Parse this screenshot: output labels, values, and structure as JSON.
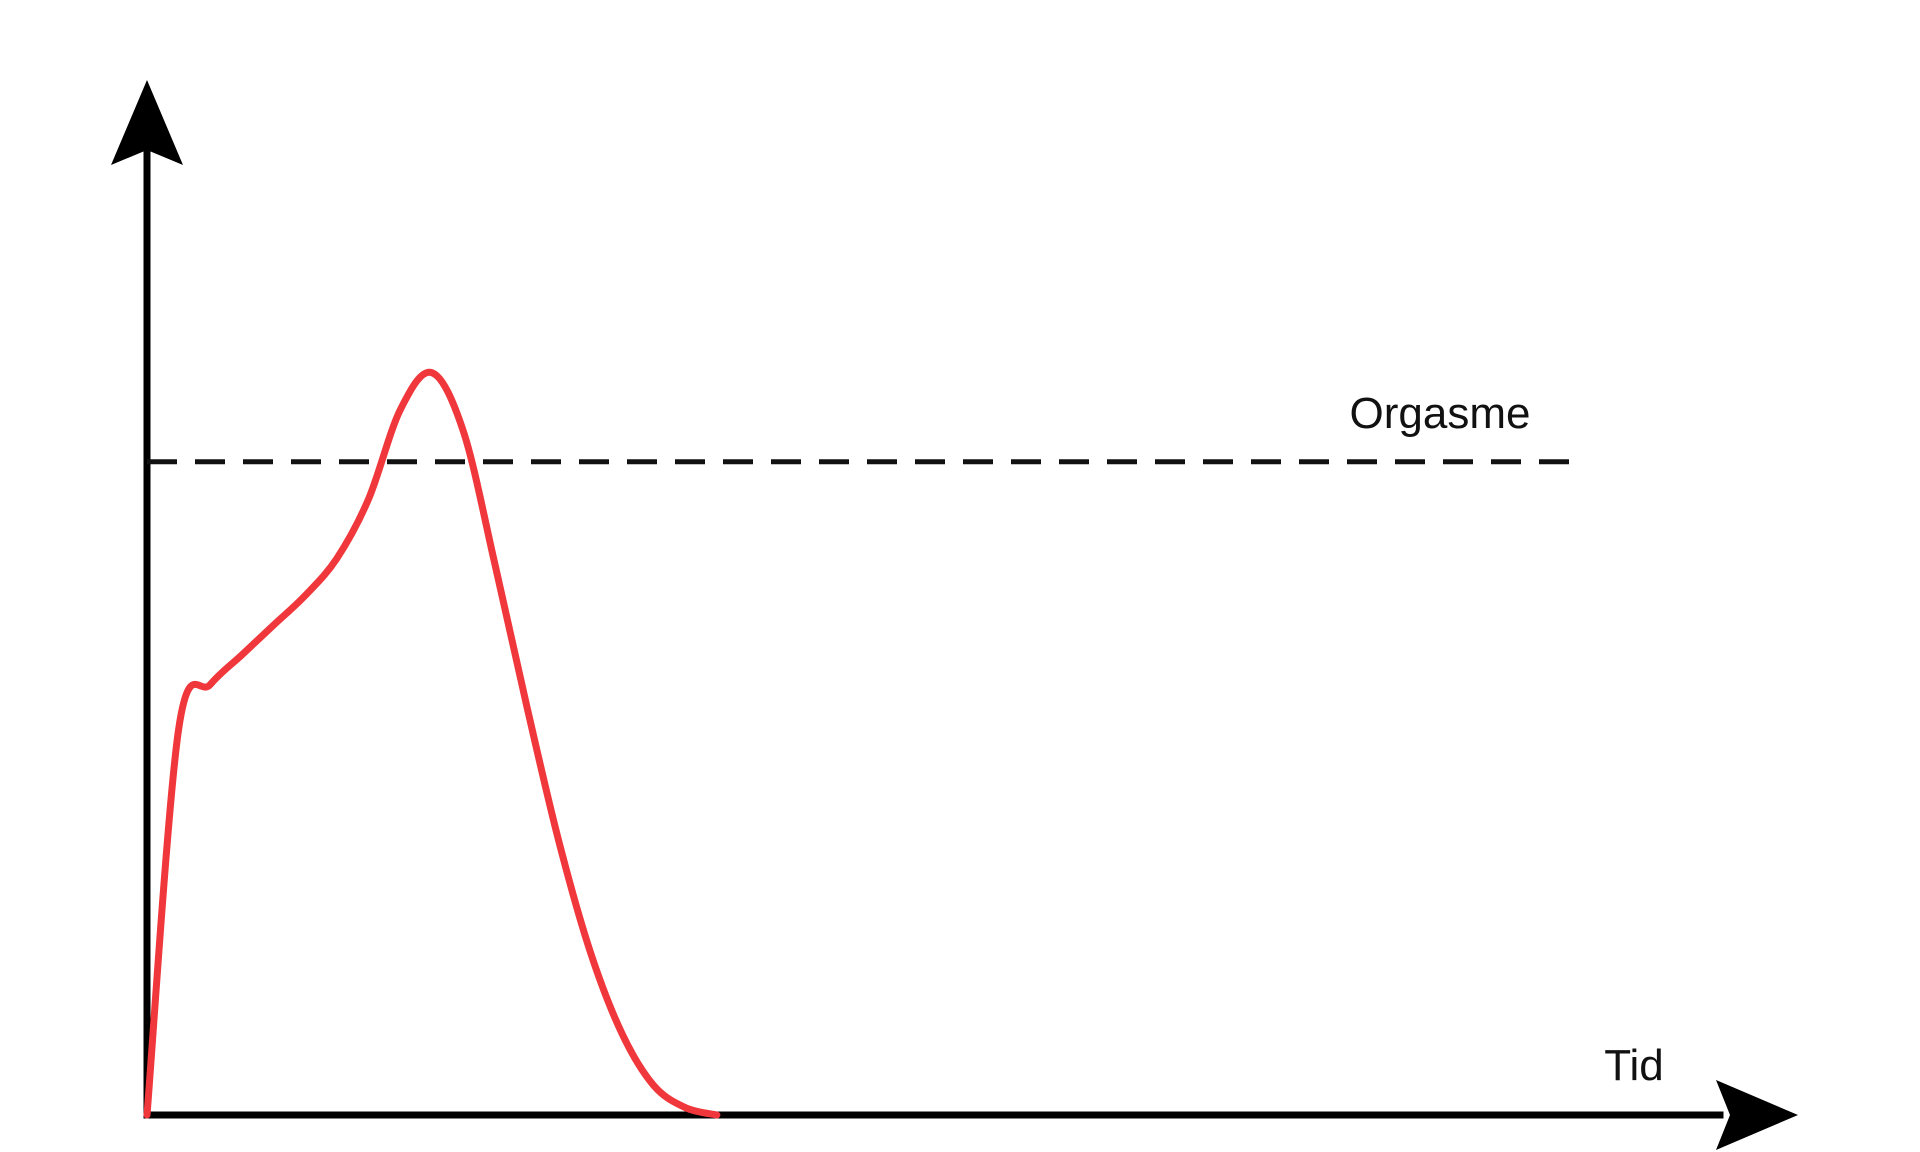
{
  "chart_data": {
    "type": "line",
    "xlabel": "Tid",
    "ylabel": "",
    "threshold": {
      "label": "Orgasme",
      "y": 0.88,
      "style": "dashed",
      "color": "#111111"
    },
    "series": [
      {
        "color": "#f0373b",
        "x": [
          0,
          0.02,
          0.04,
          0.06,
          0.08,
          0.1,
          0.12,
          0.14,
          0.16,
          0.18,
          0.2,
          0.22,
          0.24,
          0.26,
          0.28,
          0.3,
          0.32,
          0.34,
          0.36
        ],
        "y": [
          0,
          0.52,
          0.58,
          0.62,
          0.66,
          0.7,
          0.75,
          0.83,
          0.95,
          1.0,
          0.92,
          0.74,
          0.55,
          0.37,
          0.22,
          0.11,
          0.04,
          0.01,
          0
        ]
      }
    ],
    "xlim": [
      0,
      1
    ],
    "ylim": [
      0,
      1.3
    ],
    "grid": false,
    "legend": "none",
    "axes": {
      "color": "#000000",
      "arrows": true
    }
  }
}
